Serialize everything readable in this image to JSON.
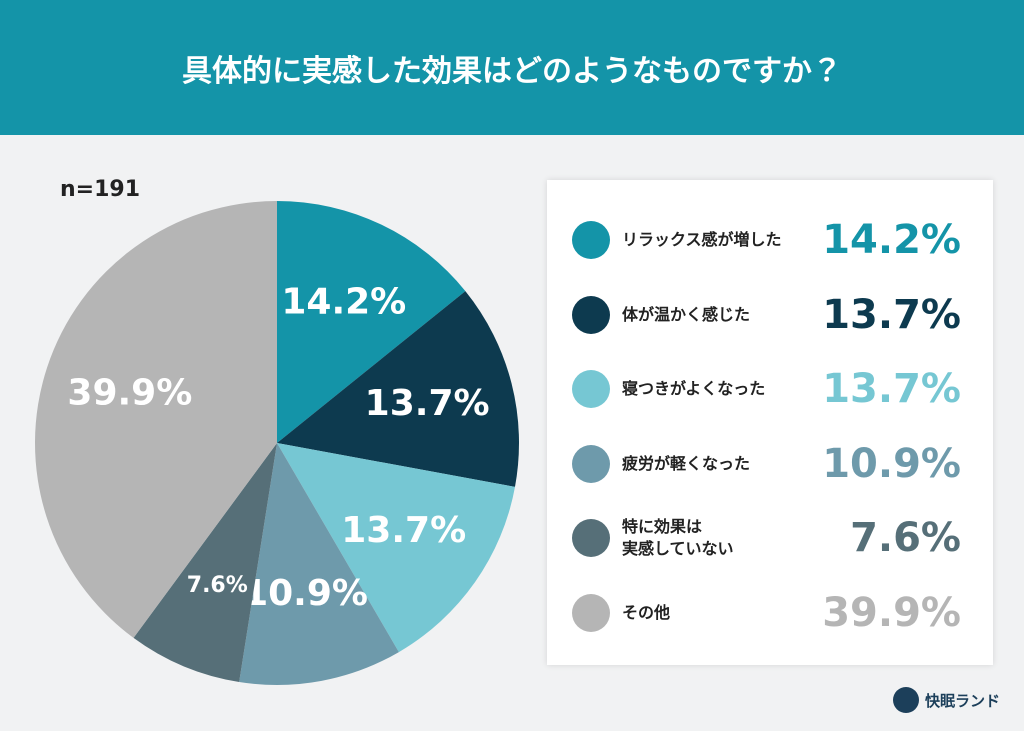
{
  "chart_data": {
    "type": "pie",
    "title": "具体的に実感した効果はどのようなものですか？",
    "subtitle": "n=191",
    "categories": [
      "リラックス感が増した",
      "体が温かく感じた",
      "寝つきがよくなった",
      "疲労が軽くなった",
      "特に効果は\n実感していない",
      "その他"
    ],
    "values": [
      14.2,
      13.7,
      13.7,
      10.9,
      7.6,
      39.9
    ],
    "value_labels": [
      "14.2%",
      "13.7%",
      "13.7%",
      "10.9%",
      "7.6%",
      "39.9%"
    ],
    "colors": [
      "#1494a8",
      "#0d3a4f",
      "#76c7d3",
      "#6e9aab",
      "#566f78",
      "#b5b5b5"
    ],
    "legend": "right"
  },
  "brand": "快眠ランド"
}
